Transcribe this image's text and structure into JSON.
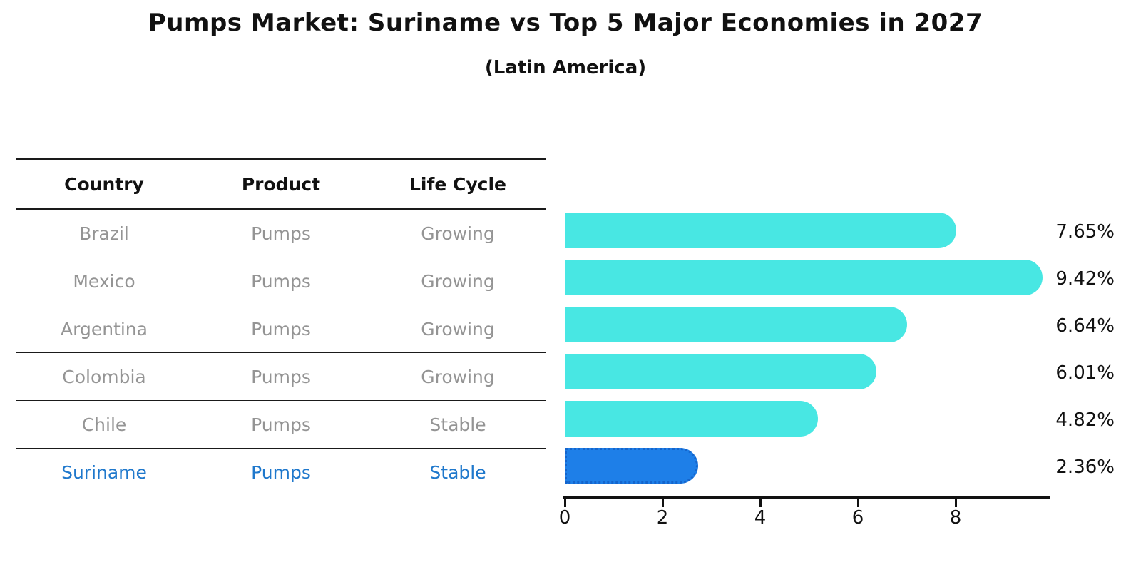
{
  "title": "Pumps Market: Suriname vs Top 5 Major Economies in 2027",
  "subtitle": "(Latin America)",
  "colors": {
    "bar_default": "#48E7E3",
    "bar_highlight": "#1E7FE8",
    "bar_highlight_border": "#1565CC",
    "highlight_text": "#1F78CC",
    "table_text": "#949494",
    "axis_text": "#111111"
  },
  "table": {
    "headers": [
      "Country",
      "Product",
      "Life Cycle"
    ],
    "rows": [
      {
        "country": "Brazil",
        "product": "Pumps",
        "life_cycle": "Growing",
        "highlight": false
      },
      {
        "country": "Mexico",
        "product": "Pumps",
        "life_cycle": "Growing",
        "highlight": false
      },
      {
        "country": "Argentina",
        "product": "Pumps",
        "life_cycle": "Growing",
        "highlight": false
      },
      {
        "country": "Colombia",
        "product": "Pumps",
        "life_cycle": "Growing",
        "highlight": false
      },
      {
        "country": "Chile",
        "product": "Pumps",
        "life_cycle": "Stable",
        "highlight": false
      },
      {
        "country": "Suriname",
        "product": "Pumps",
        "life_cycle": "Stable",
        "highlight": true
      }
    ]
  },
  "chart_data": {
    "type": "bar",
    "orientation": "horizontal",
    "title": "Pumps Market: Suriname vs Top 5 Major Economies in 2027",
    "subtitle": "(Latin America)",
    "categories": [
      "Brazil",
      "Mexico",
      "Argentina",
      "Colombia",
      "Chile",
      "Suriname"
    ],
    "values": [
      7.65,
      9.42,
      6.64,
      6.01,
      4.82,
      2.36
    ],
    "value_labels": [
      "7.65%",
      "9.42%",
      "6.64%",
      "6.01%",
      "4.82%",
      "2.36%"
    ],
    "highlight_index": 5,
    "xticks": [
      0,
      2,
      4,
      6,
      8
    ],
    "xlim": [
      0,
      9.9
    ],
    "xlabel": "",
    "ylabel": "",
    "grid": false,
    "legend_position": "none"
  }
}
